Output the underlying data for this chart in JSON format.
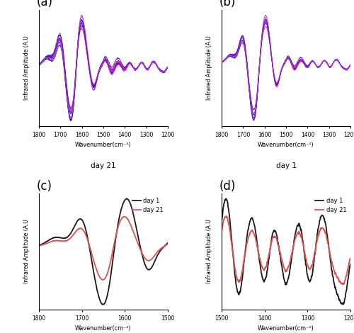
{
  "panel_labels": [
    "(a)",
    "(b)",
    "(c)",
    "(d)"
  ],
  "xlabel": "Wavenumber(cm⁻¹)",
  "ylabel": "Infrared Amplitude (A.U",
  "day21_label": "day 21",
  "day1_label": "day 1",
  "legend_day1": "day 1",
  "legend_day21": "day 21",
  "color_day1": "#1a1a1a",
  "color_day21": "#e05050",
  "multi_colors": [
    "#800080",
    "#9900cc",
    "#0000cc",
    "#006699",
    "#cc0066",
    "#440088",
    "#ff44aa",
    "#222299"
  ],
  "xticks_ab": [
    1800,
    1700,
    1600,
    1500,
    1400,
    1300,
    1200
  ],
  "xticks_c": [
    1800,
    1700,
    1600,
    1500
  ],
  "xticks_d": [
    1500,
    1400,
    1300,
    1200
  ]
}
